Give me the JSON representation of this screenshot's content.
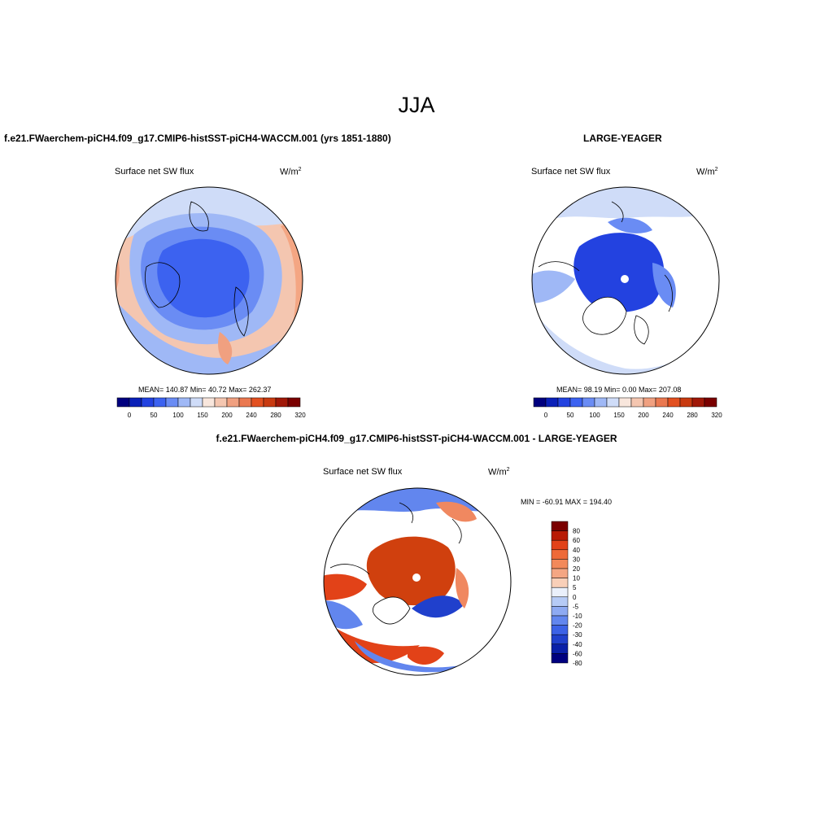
{
  "title": "JJA",
  "panels": [
    {
      "heading": "f.e21.FWaerchem-piCH4.f09_g17.CMIP6-histSST-piCH4-WACCM.001 (yrs 1851-1880)",
      "variable": "Surface net SW flux",
      "units": "W/m",
      "units_exp": "2",
      "stats": "MEAN= 140.87  Min=  40.72  Max= 262.37",
      "colorbar_labels": [
        "0",
        "50",
        "100",
        "150",
        "200",
        "240",
        "280",
        "320"
      ]
    },
    {
      "heading": "LARGE-YEAGER",
      "variable": "Surface net SW flux",
      "units": "W/m",
      "units_exp": "2",
      "stats": "MEAN=  98.19  Min=   0.00  Max= 207.08",
      "colorbar_labels": [
        "0",
        "50",
        "100",
        "150",
        "200",
        "240",
        "280",
        "320"
      ]
    },
    {
      "heading": "f.e21.FWaerchem-piCH4.f09_g17.CMIP6-histSST-piCH4-WACCM.001 - LARGE-YEAGER",
      "variable": "Surface net SW flux",
      "units": "W/m",
      "units_exp": "2",
      "stats": "MIN = -60.91 MAX = 194.40",
      "colorbar_labels": [
        "80",
        "60",
        "40",
        "30",
        "20",
        "10",
        "5",
        "0",
        "-5",
        "-10",
        "-20",
        "-30",
        "-40",
        "-60",
        "-80"
      ]
    }
  ],
  "colors": {
    "abs_scale": [
      "#00007f",
      "#0a20b8",
      "#2342e0",
      "#3c62f0",
      "#6a8cf4",
      "#9fb8f6",
      "#cfdcf8",
      "#f8e6dc",
      "#f4c6b0",
      "#f0a080",
      "#ea7850",
      "#e25020",
      "#c83a10",
      "#a01808",
      "#7a0000"
    ],
    "diff_scale": [
      "#7a0000",
      "#b81a05",
      "#e24218",
      "#ee6a38",
      "#f2895a",
      "#f4a683",
      "#f8cfb8",
      "#eaf0fb",
      "#b6cbf6",
      "#8eaaf2",
      "#6286ee",
      "#3c62e6",
      "#2040cc",
      "#0a20a8",
      "#00007f"
    ]
  }
}
